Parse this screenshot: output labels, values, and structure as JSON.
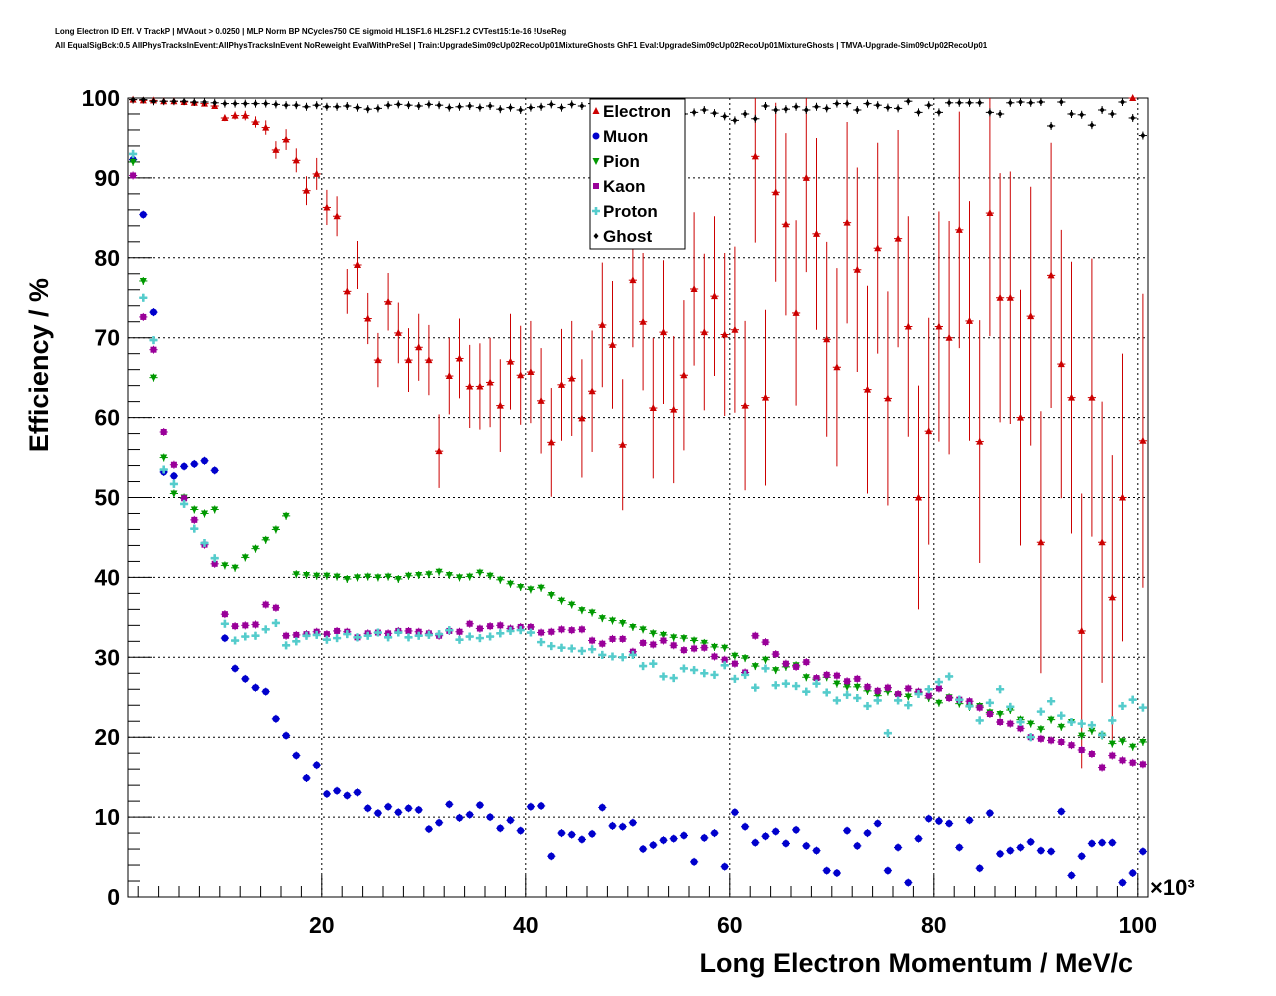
{
  "titles": {
    "line1": "Long Electron ID Eff. V TrackP | MVAout > 0.0250 | MLP Norm BP NCycles750 CE sigmoid HL1SF1.6 HL2SF1.2 CVTest15:1e-16 !UseReg",
    "line2": "All EqualSigBck:0.5 AllPhysTracksInEvent:AllPhysTracksInEvent NoReweight EvalWithPreSel | Train:UpgradeSim09cUp02RecoUp01MixtureGhosts GhF1 Eval:UpgradeSim09cUp02RecoUp01MixtureGhosts | TMVA-Upgrade-Sim09cUp02RecoUp01"
  },
  "chart_data": {
    "type": "scatter",
    "xlabel": "Long Electron Momentum / MeV/c",
    "ylabel": "Efficiency / %",
    "x_multiplier_label": "×10³",
    "xlim": [
      1,
      101
    ],
    "ylim": [
      0,
      100
    ],
    "grid": true,
    "legend_position": "top-center",
    "x_ticks": [
      20,
      40,
      60,
      80,
      100
    ],
    "y_ticks": [
      0,
      10,
      20,
      30,
      40,
      50,
      60,
      70,
      80,
      90,
      100
    ],
    "x": [
      1.5,
      2.5,
      3.5,
      4.5,
      5.5,
      6.5,
      7.5,
      8.5,
      9.5,
      10.5,
      11.5,
      12.5,
      13.5,
      14.5,
      15.5,
      16.5,
      17.5,
      18.5,
      19.5,
      20.5,
      21.5,
      22.5,
      23.5,
      24.5,
      25.5,
      26.5,
      27.5,
      28.5,
      29.5,
      30.5,
      31.5,
      32.5,
      33.5,
      34.5,
      35.5,
      36.5,
      37.5,
      38.5,
      39.5,
      40.5,
      41.5,
      42.5,
      43.5,
      44.5,
      45.5,
      46.5,
      47.5,
      48.5,
      49.5,
      50.5,
      51.5,
      52.5,
      53.5,
      54.5,
      55.5,
      56.5,
      57.5,
      58.5,
      59.5,
      60.5,
      61.5,
      62.5,
      63.5,
      64.5,
      65.5,
      66.5,
      67.5,
      68.5,
      69.5,
      70.5,
      71.5,
      72.5,
      73.5,
      74.5,
      75.5,
      76.5,
      77.5,
      78.5,
      79.5,
      80.5,
      81.5,
      82.5,
      83.5,
      84.5,
      85.5,
      86.5,
      87.5,
      88.5,
      89.5,
      90.5,
      91.5,
      92.5,
      93.5,
      94.5,
      95.5,
      96.5,
      97.5,
      98.5,
      99.5,
      100.5
    ],
    "series": [
      {
        "name": "Electron",
        "color": "#cc0000",
        "marker": "triangle-up",
        "values": [
          99.8,
          99.7,
          99.7,
          99.6,
          99.6,
          99.5,
          99.4,
          99.3,
          99.0,
          97.5,
          97.8,
          97.8,
          97.0,
          96.3,
          93.5,
          94.8,
          92.2,
          88.4,
          90.5,
          86.3,
          85.2,
          75.8,
          79.1,
          72.4,
          67.2,
          74.5,
          70.6,
          67.2,
          68.8,
          67.2,
          55.8,
          65.2,
          67.4,
          63.9,
          63.9,
          64.4,
          61.5,
          67.0,
          65.3,
          65.7,
          62.1,
          56.9,
          64.1,
          64.9,
          59.9,
          63.3,
          71.6,
          69.1,
          56.6,
          77.2,
          72.0,
          61.2,
          70.7,
          61.0,
          65.3,
          76.1,
          70.7,
          75.2,
          70.4,
          71.0,
          61.5,
          92.7,
          62.5,
          88.2,
          84.2,
          73.1,
          90.0,
          83.0,
          69.8,
          66.3,
          84.4,
          78.5,
          63.5,
          81.2,
          62.4,
          82.4,
          71.4,
          50.0,
          58.3,
          71.4,
          70.0,
          83.5,
          72.1,
          57.0,
          85.6,
          75.0,
          75.0,
          60.0,
          72.7,
          44.4,
          77.8,
          66.7,
          62.5,
          33.3,
          62.5,
          44.4,
          37.5,
          50.0,
          100.0,
          57.1
        ],
        "errors": [
          0.1,
          0.1,
          0.1,
          0.1,
          0.1,
          0.1,
          0.1,
          0.1,
          0.2,
          0.4,
          0.5,
          0.6,
          0.7,
          0.9,
          1.1,
          1.3,
          1.5,
          1.8,
          2.0,
          2.2,
          2.5,
          2.8,
          3.0,
          3.2,
          3.4,
          3.6,
          3.8,
          4.0,
          4.2,
          4.4,
          4.6,
          4.8,
          5.0,
          5.2,
          5.4,
          5.6,
          5.8,
          6.0,
          6.2,
          6.4,
          6.6,
          6.8,
          7.0,
          7.2,
          7.4,
          7.6,
          7.8,
          8.0,
          8.2,
          8.4,
          8.6,
          8.8,
          9.0,
          9.2,
          9.4,
          9.6,
          9.8,
          10.0,
          10.2,
          10.4,
          10.6,
          10.8,
          11.0,
          11.2,
          11.4,
          11.6,
          11.8,
          12.0,
          12.2,
          12.4,
          12.6,
          12.8,
          13.0,
          13.2,
          13.4,
          13.6,
          13.8,
          14.0,
          14.2,
          14.4,
          14.6,
          14.8,
          15.0,
          15.2,
          15.4,
          15.6,
          15.8,
          16.0,
          16.2,
          16.4,
          16.6,
          16.8,
          17.0,
          17.2,
          17.4,
          17.6,
          17.8,
          18.0,
          0,
          18.4
        ]
      },
      {
        "name": "Muon",
        "color": "#0000cc",
        "marker": "circle",
        "values": [
          92.3,
          85.4,
          73.2,
          53.2,
          52.7,
          53.9,
          54.2,
          54.6,
          53.4,
          32.4,
          28.6,
          27.3,
          26.2,
          25.7,
          22.3,
          20.2,
          17.7,
          14.9,
          16.5,
          12.9,
          13.3,
          12.7,
          13.1,
          11.1,
          10.5,
          11.3,
          10.6,
          11.1,
          10.9,
          8.5,
          9.3,
          11.6,
          9.9,
          10.3,
          11.5,
          10.0,
          8.6,
          9.6,
          8.3,
          11.3,
          11.4,
          5.1,
          8.0,
          7.8,
          7.2,
          7.9,
          11.2,
          8.9,
          8.8,
          9.3,
          6.0,
          6.5,
          7.1,
          7.3,
          7.7,
          4.4,
          7.4,
          8.0,
          3.8,
          10.6,
          8.8,
          6.8,
          7.6,
          8.2,
          6.7,
          8.4,
          6.4,
          5.8,
          3.3,
          3.0,
          8.3,
          6.4,
          8.0,
          9.2,
          3.3,
          6.2,
          1.8,
          7.3,
          9.8,
          9.5,
          9.2,
          6.2,
          9.6,
          3.6,
          10.5,
          5.4,
          5.8,
          6.2,
          6.9,
          5.8,
          5.7,
          10.7,
          2.7,
          5.1,
          6.7,
          6.8,
          6.8,
          1.8,
          3.0,
          5.7
        ]
      },
      {
        "name": "Pion",
        "color": "#009900",
        "marker": "triangle-down",
        "values": [
          92.0,
          77.1,
          65.0,
          55.0,
          50.5,
          50.0,
          48.5,
          48.0,
          48.5,
          41.5,
          41.2,
          42.5,
          43.6,
          44.7,
          46.0,
          47.7,
          40.4,
          40.3,
          40.2,
          40.2,
          40.1,
          39.8,
          40.0,
          40.1,
          40.0,
          40.1,
          39.8,
          40.2,
          40.3,
          40.4,
          40.7,
          40.3,
          40.0,
          40.1,
          40.6,
          40.2,
          39.7,
          39.2,
          38.8,
          38.5,
          38.7,
          37.8,
          37.1,
          36.6,
          35.9,
          35.6,
          34.9,
          34.6,
          34.3,
          33.8,
          33.5,
          33.0,
          32.8,
          32.5,
          32.4,
          32.1,
          31.8,
          31.3,
          31.2,
          30.2,
          29.9,
          28.9,
          29.7,
          28.4,
          28.8,
          29.0,
          27.5,
          27.2,
          27.5,
          26.7,
          26.3,
          26.3,
          25.8,
          25.2,
          25.7,
          25.3,
          25.1,
          25.6,
          24.9,
          24.3,
          25.0,
          24.2,
          23.8,
          23.9,
          23.1,
          22.9,
          23.4,
          22.2,
          21.7,
          21.0,
          22.2,
          21.3,
          21.9,
          20.2,
          20.8,
          20.2,
          19.2,
          19.5,
          18.8,
          19.4
        ]
      },
      {
        "name": "Kaon",
        "color": "#990099",
        "marker": "square",
        "values": [
          90.3,
          72.6,
          68.5,
          58.2,
          54.1,
          49.9,
          47.2,
          44.1,
          41.7,
          35.4,
          33.9,
          34.0,
          34.1,
          36.6,
          36.2,
          32.7,
          32.8,
          32.9,
          33.2,
          32.9,
          33.3,
          33.2,
          32.5,
          33.0,
          33.1,
          33.0,
          33.3,
          33.3,
          33.2,
          33.0,
          32.7,
          33.3,
          33.2,
          34.2,
          33.6,
          33.9,
          34.0,
          33.6,
          33.8,
          33.8,
          33.1,
          33.2,
          33.5,
          33.4,
          33.5,
          32.1,
          31.7,
          32.3,
          32.3,
          30.7,
          31.8,
          31.6,
          32.1,
          31.5,
          30.9,
          31.1,
          31.2,
          30.1,
          29.7,
          29.2,
          28.1,
          32.7,
          31.9,
          30.4,
          29.2,
          28.8,
          29.4,
          27.4,
          27.8,
          27.7,
          27.0,
          27.3,
          26.3,
          25.8,
          26.2,
          25.4,
          26.1,
          25.7,
          25.2,
          26.1,
          24.9,
          24.7,
          24.5,
          23.7,
          22.9,
          21.9,
          21.7,
          21.1,
          20.0,
          19.8,
          19.6,
          19.4,
          19.0,
          18.4,
          17.9,
          16.2,
          17.7,
          17.1,
          16.8,
          16.6
        ]
      },
      {
        "name": "Proton",
        "color": "#55cccc",
        "marker": "cross",
        "values": [
          93.0,
          75.0,
          69.7,
          53.5,
          51.7,
          49.2,
          46.1,
          44.3,
          42.4,
          34.2,
          32.1,
          32.6,
          32.7,
          33.5,
          34.3,
          31.5,
          32.0,
          32.7,
          32.8,
          32.2,
          32.4,
          32.9,
          32.5,
          32.7,
          33.1,
          32.5,
          33.1,
          32.5,
          32.7,
          32.8,
          32.9,
          33.4,
          32.2,
          32.6,
          32.4,
          32.6,
          33.0,
          33.3,
          33.4,
          33.1,
          31.9,
          31.4,
          31.2,
          31.1,
          30.8,
          31.0,
          30.3,
          30.1,
          30.0,
          30.3,
          28.9,
          29.2,
          27.6,
          27.4,
          28.6,
          28.4,
          28.0,
          27.8,
          29.0,
          27.3,
          27.8,
          26.2,
          28.6,
          26.5,
          26.7,
          26.4,
          25.7,
          26.7,
          25.6,
          24.6,
          25.3,
          24.9,
          23.9,
          24.6,
          20.5,
          24.6,
          24.0,
          25.4,
          26.0,
          26.9,
          27.6,
          24.7,
          23.9,
          22.1,
          24.3,
          26.0,
          23.8,
          21.9,
          20.0,
          23.2,
          24.5,
          22.7,
          21.9,
          21.7,
          21.5,
          20.3,
          22.1,
          23.9,
          24.7,
          23.7
        ]
      },
      {
        "name": "Ghost",
        "color": "#000000",
        "marker": "diamond",
        "values": [
          99.8,
          99.8,
          99.6,
          99.6,
          99.6,
          99.6,
          99.5,
          99.5,
          99.4,
          99.3,
          99.3,
          99.3,
          99.3,
          99.3,
          99.2,
          99.1,
          99.1,
          98.9,
          99.1,
          98.9,
          98.9,
          99.0,
          98.8,
          98.6,
          98.7,
          99.1,
          99.2,
          99.1,
          99.0,
          99.2,
          99.1,
          98.8,
          98.9,
          99.0,
          98.8,
          99.0,
          98.6,
          98.8,
          98.5,
          98.8,
          98.9,
          99.2,
          98.8,
          99.2,
          99.0,
          99.3,
          98.7,
          99.5,
          98.7,
          98.5,
          99.0,
          99.2,
          99.0,
          98.9,
          98.0,
          98.2,
          98.5,
          98.1,
          97.7,
          97.2,
          98.0,
          97.4,
          99.0,
          98.5,
          98.6,
          98.9,
          98.5,
          98.9,
          98.7,
          99.3,
          99.3,
          98.5,
          99.3,
          99.1,
          98.8,
          98.7,
          99.6,
          98.2,
          99.1,
          98.2,
          99.4,
          99.4,
          99.4,
          99.4,
          98.2,
          98.0,
          99.4,
          99.5,
          99.4,
          99.5,
          96.5,
          99.5,
          98.0,
          97.9,
          96.6,
          98.5,
          98.0,
          99.5,
          97.5,
          95.3
        ]
      }
    ]
  }
}
